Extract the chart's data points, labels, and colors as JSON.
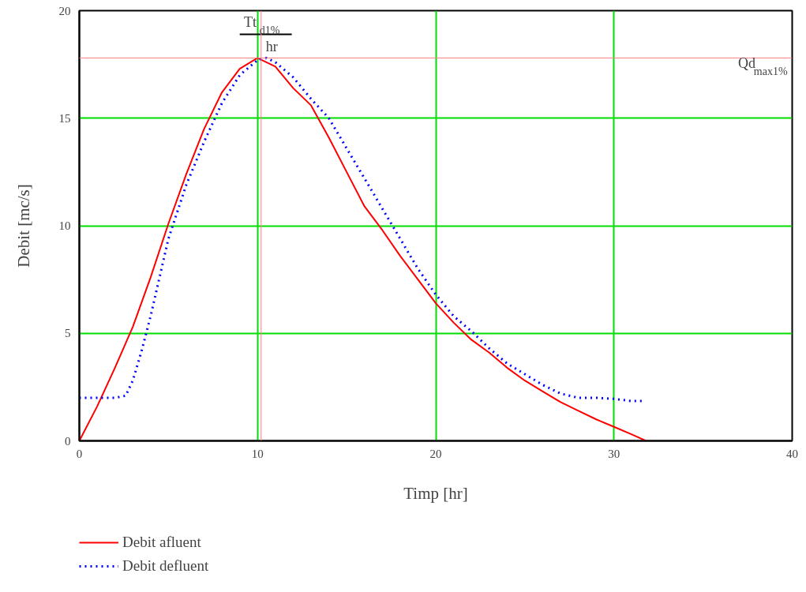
{
  "chart_data": {
    "type": "line",
    "xlabel": "Timp [hr]",
    "ylabel": "Debit [mc/s]",
    "xlim": [
      0,
      40
    ],
    "ylim": [
      0,
      20
    ],
    "xticks": [
      0,
      10,
      20,
      30,
      40
    ],
    "yticks": [
      0,
      5,
      10,
      15,
      20
    ],
    "grid": true,
    "legend": "bottom left",
    "series": [
      {
        "name": "Debit afluent",
        "color": "#ff0000",
        "line_style": "solid",
        "x": [
          0,
          1,
          2,
          3,
          4,
          5,
          6,
          7,
          8,
          9,
          10,
          11,
          12,
          13,
          14,
          15,
          16,
          17,
          18,
          19,
          20,
          21,
          22,
          23,
          24,
          25,
          26,
          27,
          28,
          29,
          30,
          31,
          31.8
        ],
        "values": [
          0,
          1.6,
          3.4,
          5.3,
          7.6,
          10.1,
          12.4,
          14.5,
          16.2,
          17.3,
          17.8,
          17.4,
          16.4,
          15.6,
          14.1,
          12.5,
          10.9,
          9.8,
          8.6,
          7.5,
          6.4,
          5.5,
          4.7,
          4.1,
          3.4,
          2.8,
          2.3,
          1.8,
          1.4,
          1.0,
          0.65,
          0.3,
          0
        ]
      },
      {
        "name": "Debit defluent",
        "color": "#0000ff",
        "line_style": "dotted",
        "x": [
          0,
          1,
          2,
          2.6,
          3,
          3.5,
          4,
          5,
          6,
          7,
          8,
          9,
          10,
          10.5,
          11,
          12,
          13,
          14,
          15,
          16,
          17,
          18,
          19,
          20,
          21,
          22,
          23,
          24,
          25,
          26,
          27,
          28,
          29,
          30,
          31,
          31.6
        ],
        "values": [
          2.0,
          2.0,
          2.0,
          2.1,
          2.8,
          4.2,
          5.8,
          9.4,
          11.9,
          13.9,
          15.7,
          17.0,
          17.7,
          17.8,
          17.6,
          16.9,
          15.9,
          15.0,
          13.6,
          12.2,
          10.8,
          9.4,
          8.0,
          6.8,
          5.8,
          5.1,
          4.3,
          3.6,
          3.1,
          2.6,
          2.2,
          2.0,
          2.0,
          1.95,
          1.85,
          1.85
        ]
      }
    ],
    "ref_lines": [
      {
        "axis": "y",
        "value": 17.8,
        "label": "Qd$_{max1%}$",
        "color": "#ff8080"
      },
      {
        "axis": "x",
        "value": 10.2,
        "label": "Tt$_{d1%}$",
        "color": "#ff8080"
      }
    ],
    "annotations": [
      {
        "text": "hr",
        "x": 10.2,
        "y": 17.8
      }
    ]
  }
}
